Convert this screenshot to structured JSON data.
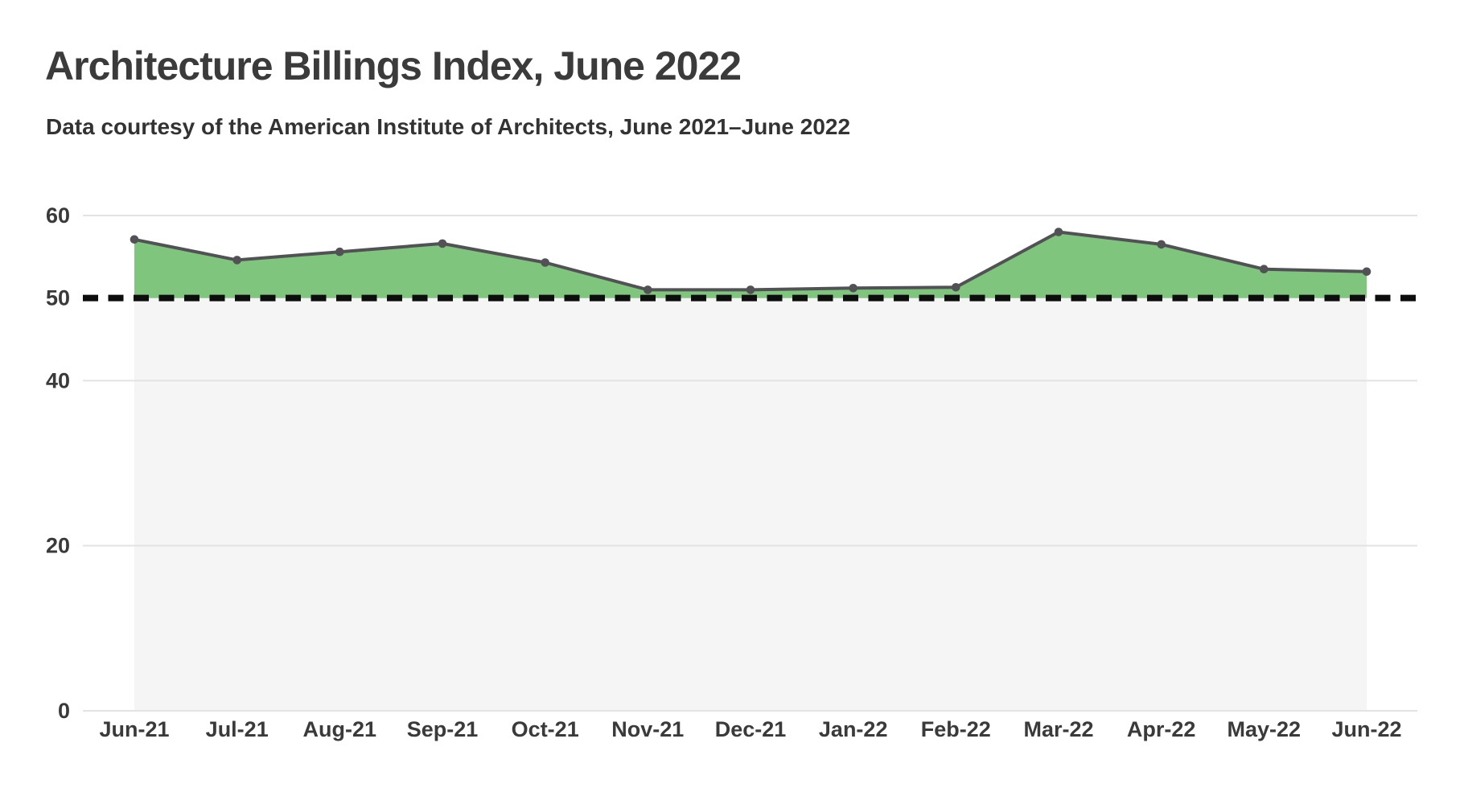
{
  "header": {
    "title": "Architecture Billings Index, June 2022",
    "subtitle": "Data courtesy of the American Institute of Architects, June 2021–June 2022"
  },
  "chart_data": {
    "type": "area",
    "title": "Architecture Billings Index, June 2022",
    "subtitle": "Data courtesy of the American Institute of Architects, June 2021–June 2022",
    "categories": [
      "Jun-21",
      "Jul-21",
      "Aug-21",
      "Sep-21",
      "Oct-21",
      "Nov-21",
      "Dec-21",
      "Jan-22",
      "Feb-22",
      "Mar-22",
      "Apr-22",
      "May-22",
      "Jun-22"
    ],
    "series": [
      {
        "name": "Architecture Billings Index",
        "values": [
          57.1,
          54.6,
          55.6,
          56.6,
          54.3,
          51.0,
          51.0,
          51.2,
          51.3,
          58.0,
          56.5,
          53.5,
          53.2
        ]
      }
    ],
    "xlabel": "",
    "ylabel": "",
    "ylim": [
      0,
      60
    ],
    "yticks": [
      0,
      20,
      40,
      50,
      60
    ],
    "grid": "horizontal",
    "legend": "none",
    "area_baseline": 50,
    "reference_line": {
      "value": 50,
      "style": "dashed"
    },
    "colors": {
      "area_fill": "#7fc57d",
      "line": "#525256",
      "point": "#525256",
      "reference_line": "#0d0d0d",
      "band_below_reference": "#f5f5f5",
      "gridline": "#e3e3e3",
      "tick_text": "#3a3a3a",
      "title_text": "#3b3b3b"
    }
  }
}
